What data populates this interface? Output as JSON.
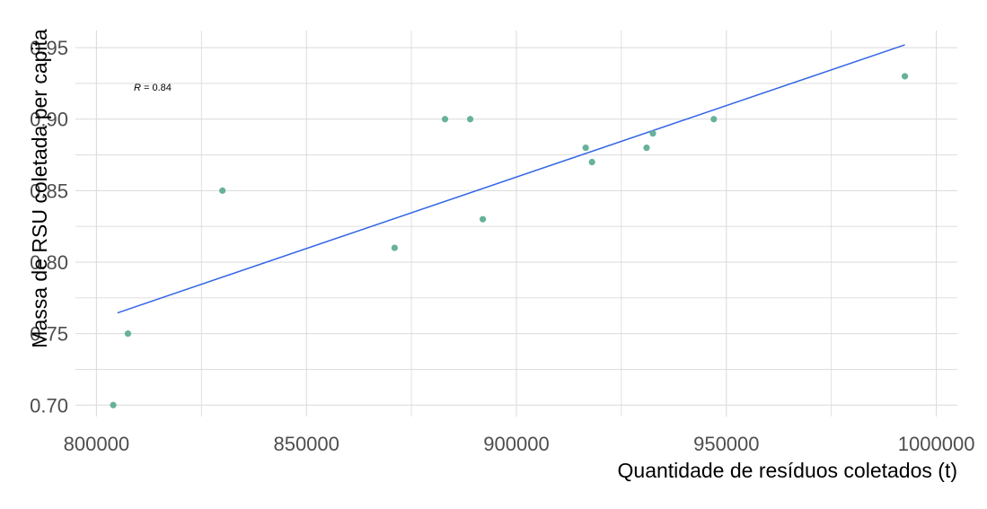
{
  "chart_data": {
    "type": "scatter",
    "title": "",
    "xlabel": "Quantidade de resíduos coletados (t)",
    "ylabel": "Massa de RSU coletada per capita",
    "xlim": [
      795000,
      1005000
    ],
    "ylim": [
      0.692,
      0.962
    ],
    "x_ticks": [
      800000,
      850000,
      900000,
      950000,
      1000000
    ],
    "x_tick_labels": [
      "800000",
      "850000",
      "900000",
      "950000",
      "1000000"
    ],
    "y_ticks": [
      0.7,
      0.75,
      0.8,
      0.85,
      0.9,
      0.95
    ],
    "y_tick_labels": [
      "0.70",
      "0.75",
      "0.80",
      "0.85",
      "0.90",
      "0.95"
    ],
    "grid": true,
    "points": [
      {
        "x": 804000,
        "y": 0.7
      },
      {
        "x": 807500,
        "y": 0.75
      },
      {
        "x": 830000,
        "y": 0.85
      },
      {
        "x": 871000,
        "y": 0.81
      },
      {
        "x": 883000,
        "y": 0.9
      },
      {
        "x": 889000,
        "y": 0.9
      },
      {
        "x": 892000,
        "y": 0.83
      },
      {
        "x": 916500,
        "y": 0.88
      },
      {
        "x": 918000,
        "y": 0.87
      },
      {
        "x": 931000,
        "y": 0.88
      },
      {
        "x": 932500,
        "y": 0.89
      },
      {
        "x": 947000,
        "y": 0.9
      },
      {
        "x": 992500,
        "y": 0.93
      }
    ],
    "trend_line": {
      "x": [
        805000,
        992500
      ],
      "y": [
        0.7645,
        0.952
      ]
    },
    "annotation": {
      "label_italic": "R",
      "label_rest": " = 0.84"
    },
    "colors": {
      "point": "#66b29a",
      "line": "#3366e6",
      "grid": "#d9d9d9"
    }
  }
}
